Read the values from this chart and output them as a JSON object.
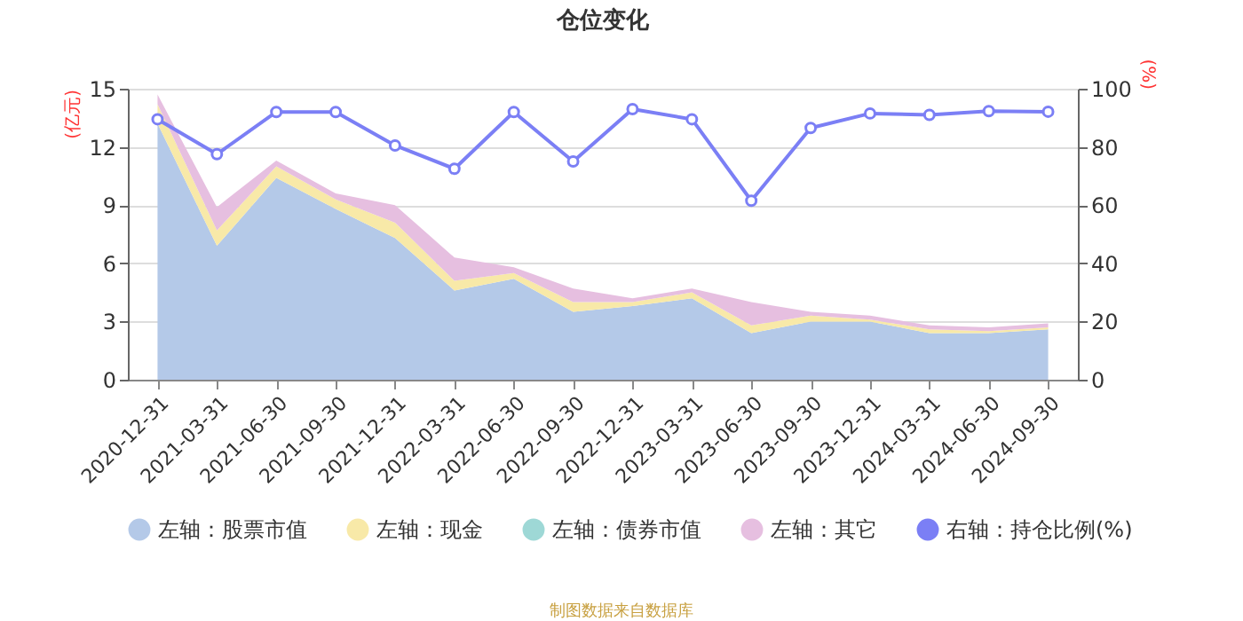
{
  "chart_data": {
    "type": "area",
    "title": "仓位变化",
    "ylabel": "(亿元)",
    "y2label": "(%)",
    "stacked": true,
    "categories": [
      "2020-12-31",
      "2021-03-31",
      "2021-06-30",
      "2021-09-30",
      "2021-12-31",
      "2022-03-31",
      "2022-06-30",
      "2022-09-30",
      "2022-12-31",
      "2023-03-31",
      "2023-06-30",
      "2023-09-30",
      "2023-12-31",
      "2024-03-31",
      "2024-06-30",
      "2024-09-30"
    ],
    "series": [
      {
        "name": "左轴：股票市值",
        "color": "#b4c9e8",
        "values": [
          13.2,
          6.9,
          10.4,
          8.8,
          7.3,
          4.6,
          5.2,
          3.5,
          3.8,
          4.2,
          2.4,
          3.0,
          3.0,
          2.4,
          2.4,
          2.6
        ]
      },
      {
        "name": "左轴：现金",
        "color": "#f8e9a8",
        "values": [
          1.0,
          0.8,
          0.6,
          0.5,
          0.8,
          0.5,
          0.3,
          0.5,
          0.2,
          0.3,
          0.4,
          0.3,
          0.1,
          0.2,
          0.1,
          0.1
        ]
      },
      {
        "name": "左轴：债券市值",
        "color": "#9ed8d6",
        "values": [
          null,
          null,
          null,
          null,
          null,
          null,
          null,
          null,
          null,
          null,
          null,
          null,
          null,
          null,
          null,
          null
        ]
      },
      {
        "name": "左轴：其它",
        "color": "#e6bfe0",
        "values": [
          0.5,
          1.2,
          0.3,
          0.3,
          0.9,
          1.2,
          0.3,
          0.7,
          0.2,
          0.2,
          1.2,
          0.2,
          0.2,
          0.2,
          0.2,
          0.2
        ]
      },
      {
        "name": "右轴：持仓比例(%)",
        "color": "#7b7ff5",
        "type": "line",
        "axis": "y2",
        "marker": "circle",
        "values": [
          89.5,
          77.5,
          92,
          92,
          80.5,
          72.5,
          92,
          75,
          93,
          89.5,
          61.5,
          86.5,
          91.5,
          91,
          92.3,
          92.1
        ]
      }
    ],
    "ylim": [
      0,
      15
    ],
    "yticks": [
      0,
      3,
      6,
      9,
      12,
      15
    ],
    "y2lim": [
      0,
      100
    ],
    "y2ticks": [
      0,
      20,
      40,
      60,
      80,
      100
    ],
    "grid": "y",
    "legend": "bottom",
    "line_style": "solid",
    "annotations": [
      "制图数据来自数据库"
    ]
  }
}
